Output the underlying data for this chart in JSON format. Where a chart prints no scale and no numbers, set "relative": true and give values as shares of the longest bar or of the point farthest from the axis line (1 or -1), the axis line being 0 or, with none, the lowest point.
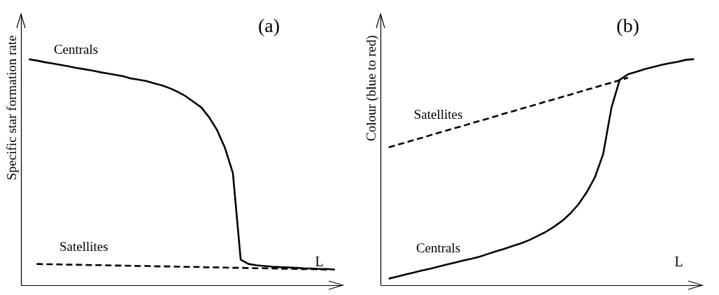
{
  "chart_data": [
    {
      "type": "line",
      "title": "(a)",
      "xlabel": "L",
      "ylabel": "Specific star formation rate",
      "relative": true,
      "categories": [
        null,
        null,
        null,
        null,
        null,
        null,
        null,
        null,
        null,
        null,
        null,
        null,
        null,
        null,
        null,
        null,
        null,
        null,
        null,
        null,
        null,
        null,
        null,
        null,
        null,
        null,
        null,
        null,
        null,
        null,
        null,
        null,
        null,
        null,
        null,
        null,
        null,
        null,
        null,
        null
      ],
      "series": [
        {
          "name": "Centrals",
          "color": "#000000",
          "line_style": "solid",
          "values": [
            1.0,
            0.994,
            0.987,
            0.981,
            0.975,
            0.969,
            0.962,
            0.956,
            0.95,
            0.943,
            0.937,
            0.931,
            0.925,
            0.915,
            0.909,
            0.903,
            0.893,
            0.884,
            0.871,
            0.855,
            0.836,
            0.811,
            0.786,
            0.742,
            0.686,
            0.607,
            0.497,
            0.113,
            0.094,
            0.088,
            0.085,
            0.082,
            0.08,
            0.079,
            0.077,
            0.075,
            0.074,
            0.072,
            0.072,
            0.069
          ]
        },
        {
          "name": "Satellites",
          "color": "#000000",
          "line_style": "dashed",
          "values": [
            null,
            0.094,
            0.093,
            0.093,
            0.092,
            0.091,
            0.091,
            0.09,
            0.089,
            0.089,
            0.088,
            0.087,
            0.087,
            0.086,
            0.085,
            0.085,
            0.084,
            0.083,
            0.083,
            0.082,
            0.081,
            0.081,
            0.08,
            0.079,
            0.079,
            0.078,
            0.077,
            0.077,
            0.076,
            0.075,
            0.075,
            0.074,
            0.073,
            0.073,
            0.072,
            0.071,
            0.071,
            0.07,
            0.069,
            null
          ]
        }
      ]
    },
    {
      "type": "line",
      "title": "(b)",
      "xlabel": "L",
      "ylabel": "Colour (blue to red)",
      "relative": true,
      "categories": [
        null,
        null,
        null,
        null,
        null,
        null,
        null,
        null,
        null,
        null,
        null,
        null,
        null,
        null,
        null,
        null,
        null,
        null,
        null,
        null,
        null,
        null,
        null,
        null,
        null,
        null,
        null,
        null,
        null,
        null,
        null,
        null,
        null,
        null,
        null,
        null,
        null,
        null
      ],
      "series": [
        {
          "name": "Centrals",
          "color": "#000000",
          "line_style": "solid",
          "values": [
            0.029,
            0.038,
            0.047,
            0.056,
            0.065,
            0.073,
            0.082,
            0.091,
            0.1,
            0.109,
            0.117,
            0.126,
            0.138,
            0.15,
            0.161,
            0.173,
            0.185,
            0.199,
            0.217,
            0.235,
            0.258,
            0.284,
            0.317,
            0.358,
            0.411,
            0.478,
            0.581,
            0.786,
            0.909,
            0.933,
            0.944,
            0.956,
            0.965,
            0.974,
            0.982,
            0.988,
            0.997,
            1.0
          ]
        },
        {
          "name": "Satellites",
          "color": "#000000",
          "line_style": "dashed",
          "values": [
            0.61,
            0.621,
            0.631,
            0.642,
            0.652,
            0.663,
            0.674,
            0.684,
            0.695,
            0.705,
            0.716,
            0.727,
            0.737,
            0.748,
            0.759,
            0.769,
            0.78,
            0.79,
            0.801,
            0.812,
            0.822,
            0.833,
            0.843,
            0.854,
            0.865,
            0.875,
            0.886,
            0.896,
            0.907,
            0.918,
            null,
            null,
            null,
            null,
            null,
            null,
            null,
            null
          ]
        }
      ]
    }
  ]
}
